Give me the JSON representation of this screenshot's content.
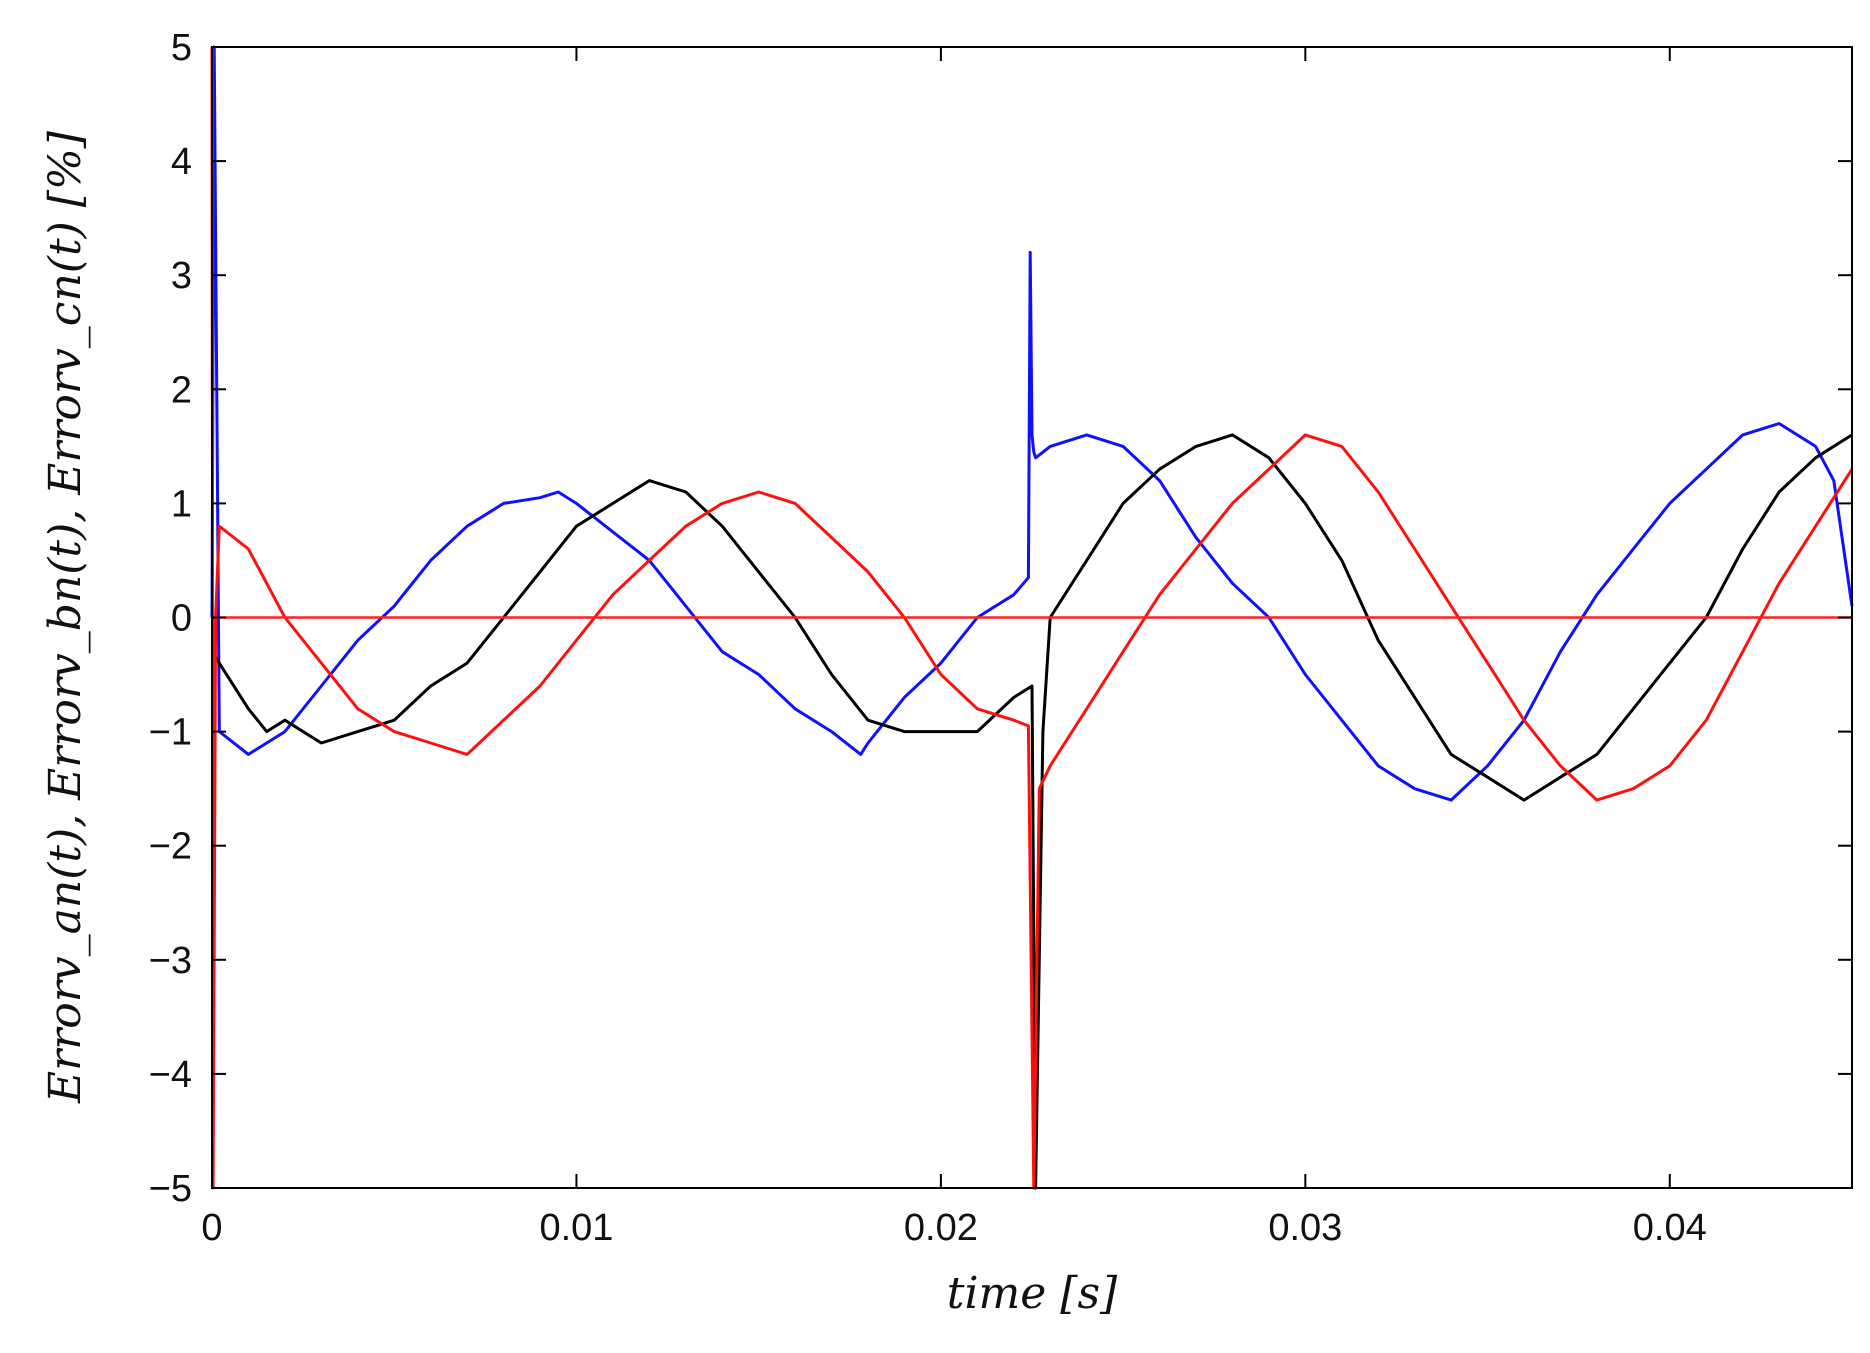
{
  "chart_data": {
    "type": "line",
    "xlabel": "time [s]",
    "ylabel": "Errorv_an(t), Errorv_bn(t), Errorv_cn(t) [%]",
    "xlim": [
      0,
      0.045
    ],
    "ylim": [
      -5,
      5
    ],
    "xticks": [
      0,
      0.01,
      0.02,
      0.03,
      0.04
    ],
    "xtick_labels": [
      "0",
      "0.01",
      "0.02",
      "0.03",
      "0.04"
    ],
    "yticks": [
      -5,
      -4,
      -3,
      -2,
      -1,
      0,
      1,
      2,
      3,
      4,
      5
    ],
    "ytick_labels": [
      "−5",
      "−4",
      "−3",
      "−2",
      "−1",
      "0",
      "1",
      "2",
      "3",
      "4",
      "5"
    ],
    "grid": false,
    "reference_line": {
      "y": 0,
      "color": "#ff2020"
    },
    "series": [
      {
        "color": "#1010ff",
        "x": [
          0,
          6e-05,
          0.0002,
          0.001,
          0.002,
          0.003,
          0.004,
          0.005,
          0.006,
          0.007,
          0.008,
          0.009,
          0.0095,
          0.01,
          0.011,
          0.012,
          0.013,
          0.014,
          0.015,
          0.016,
          0.017,
          0.0178,
          0.018,
          0.019,
          0.02,
          0.021,
          0.022,
          0.0224,
          0.02245,
          0.0225,
          0.02255,
          0.0226,
          0.023,
          0.024,
          0.025,
          0.026,
          0.027,
          0.028,
          0.029,
          0.03,
          0.031,
          0.032,
          0.033,
          0.034,
          0.035,
          0.036,
          0.037,
          0.038,
          0.039,
          0.04,
          0.041,
          0.042,
          0.043,
          0.044,
          0.0445,
          0.045
        ],
        "y": [
          0.0,
          5.0,
          -1.0,
          -1.2,
          -1.0,
          -0.6,
          -0.2,
          0.1,
          0.5,
          0.8,
          1.0,
          1.05,
          1.1,
          1.0,
          0.75,
          0.5,
          0.1,
          -0.3,
          -0.5,
          -0.8,
          -1.0,
          -1.2,
          -1.1,
          -0.7,
          -0.4,
          0.0,
          0.2,
          0.35,
          3.2,
          1.6,
          1.45,
          1.4,
          1.5,
          1.6,
          1.5,
          1.2,
          0.7,
          0.3,
          0.0,
          -0.5,
          -0.9,
          -1.3,
          -1.5,
          -1.6,
          -1.3,
          -0.9,
          -0.3,
          0.2,
          0.6,
          1.0,
          1.3,
          1.6,
          1.7,
          1.5,
          1.2,
          0.1
        ]
      },
      {
        "color": "#000000",
        "x": [
          0,
          0.001,
          0.0015,
          0.002,
          0.003,
          0.004,
          0.005,
          0.006,
          0.007,
          0.008,
          0.009,
          0.01,
          0.011,
          0.012,
          0.013,
          0.014,
          0.015,
          0.016,
          0.017,
          0.018,
          0.019,
          0.02,
          0.021,
          0.022,
          0.0225,
          0.0226,
          0.0228,
          0.023,
          0.024,
          0.025,
          0.026,
          0.027,
          0.028,
          0.029,
          0.03,
          0.031,
          0.032,
          0.033,
          0.034,
          0.035,
          0.036,
          0.037,
          0.038,
          0.039,
          0.04,
          0.041,
          0.042,
          0.043,
          0.044,
          0.045
        ],
        "y": [
          -0.3,
          -0.8,
          -1.0,
          -0.9,
          -1.1,
          -1.0,
          -0.9,
          -0.6,
          -0.4,
          0.0,
          0.4,
          0.8,
          1.0,
          1.2,
          1.1,
          0.8,
          0.4,
          0.0,
          -0.5,
          -0.9,
          -1.0,
          -1.0,
          -1.0,
          -0.7,
          -0.6,
          -5.0,
          -1.0,
          0.0,
          0.5,
          1.0,
          1.3,
          1.5,
          1.6,
          1.4,
          1.0,
          0.5,
          -0.2,
          -0.7,
          -1.2,
          -1.4,
          -1.6,
          -1.4,
          -1.2,
          -0.8,
          -0.4,
          0.0,
          0.6,
          1.1,
          1.4,
          1.6
        ]
      },
      {
        "color": "#ff1010",
        "x": [
          0,
          3e-05,
          0.0001,
          0.0002,
          0.001,
          0.002,
          0.003,
          0.004,
          0.005,
          0.006,
          0.007,
          0.008,
          0.009,
          0.01,
          0.011,
          0.012,
          0.013,
          0.014,
          0.015,
          0.016,
          0.017,
          0.018,
          0.019,
          0.02,
          0.021,
          0.022,
          0.0224,
          0.02255,
          0.0227,
          0.023,
          0.024,
          0.025,
          0.026,
          0.027,
          0.028,
          0.029,
          0.03,
          0.031,
          0.032,
          0.033,
          0.034,
          0.035,
          0.036,
          0.037,
          0.038,
          0.039,
          0.04,
          0.041,
          0.042,
          0.043,
          0.044,
          0.045
        ],
        "y": [
          5.0,
          -5.0,
          0.0,
          0.8,
          0.6,
          0.0,
          -0.4,
          -0.8,
          -1.0,
          -1.1,
          -1.2,
          -0.9,
          -0.6,
          -0.2,
          0.2,
          0.5,
          0.8,
          1.0,
          1.1,
          1.0,
          0.7,
          0.4,
          0.0,
          -0.5,
          -0.8,
          -0.9,
          -0.95,
          -5.0,
          -1.5,
          -1.3,
          -0.8,
          -0.3,
          0.2,
          0.6,
          1.0,
          1.3,
          1.6,
          1.5,
          1.1,
          0.6,
          0.1,
          -0.4,
          -0.9,
          -1.3,
          -1.6,
          -1.5,
          -1.3,
          -0.9,
          -0.3,
          0.3,
          0.8,
          1.3
        ]
      }
    ]
  }
}
